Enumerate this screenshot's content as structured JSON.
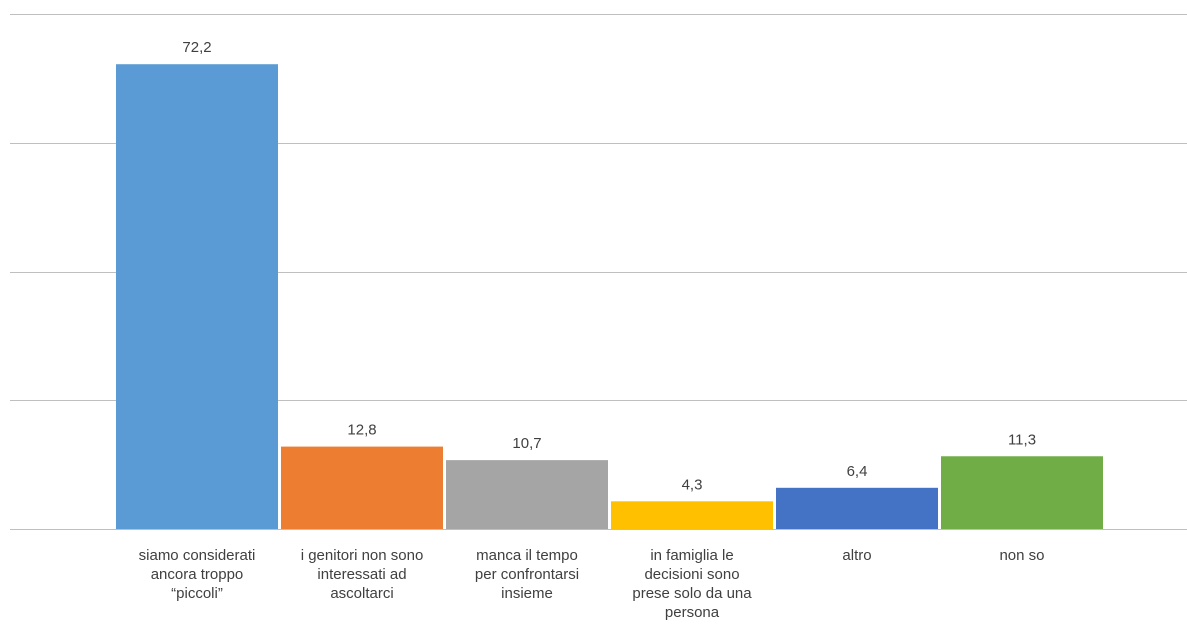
{
  "chart_data": {
    "type": "bar",
    "categories": [
      "siamo considerati\nancora troppo\n“piccoli”",
      "i genitori non sono\ninteressati ad\nascoltarci",
      "manca il tempo\nper confrontarsi\ninsieme",
      "in famiglia le\ndecisioni sono\nprese solo da una\npersona",
      "altro",
      "non so"
    ],
    "values": [
      72.2,
      12.8,
      10.7,
      4.3,
      6.4,
      11.3
    ],
    "value_labels": [
      "72,2",
      "12,8",
      "10,7",
      "4,3",
      "6,4",
      "11,3"
    ],
    "colors": [
      "#5b9bd5",
      "#ed7d31",
      "#a5a5a5",
      "#ffc000",
      "#4472c4",
      "#70ad47"
    ],
    "ylim": [
      0,
      80
    ],
    "gridlines": [
      0,
      20,
      40,
      60,
      80
    ],
    "grid": true,
    "legend": false,
    "title": "",
    "xlabel": "",
    "ylabel": ""
  }
}
